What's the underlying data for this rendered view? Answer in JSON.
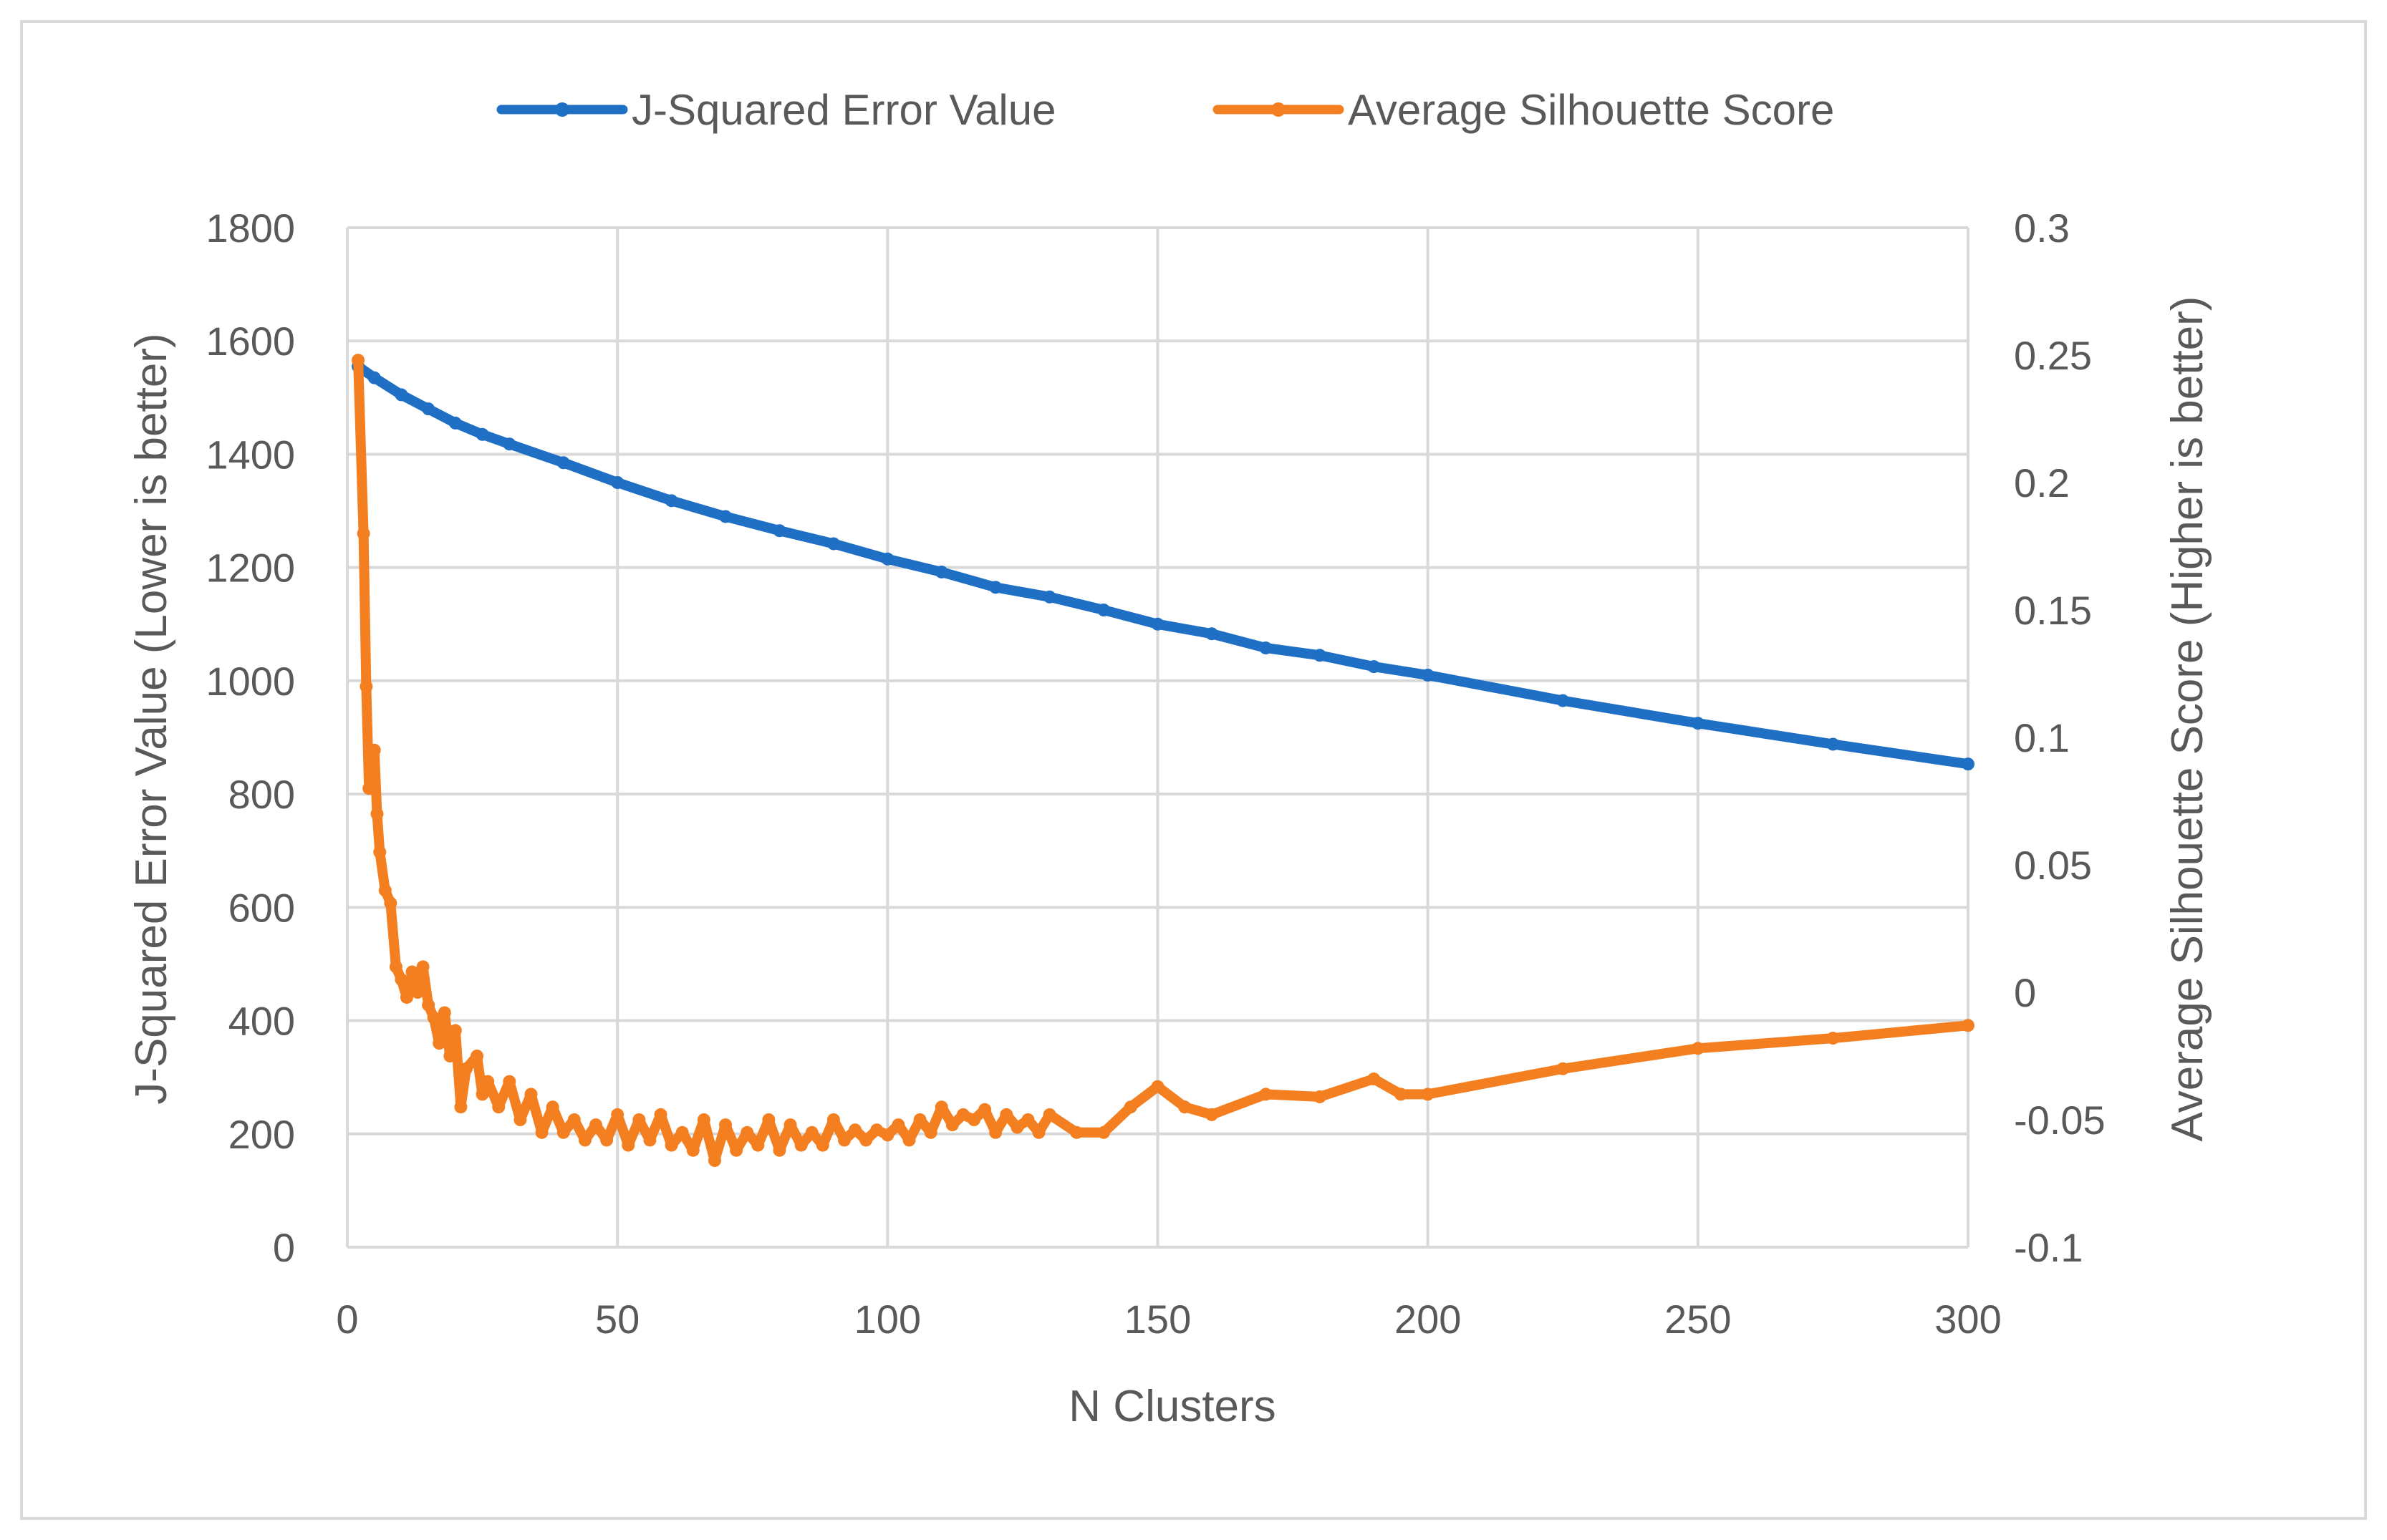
{
  "chart_data": {
    "type": "line",
    "title": "",
    "xlabel": "N Clusters",
    "ylabel": "J-Squared Error Value (Lower is better)",
    "y2label": "Average Silhouette Score (Higher is better)",
    "xlim": [
      0,
      300
    ],
    "ylim": [
      0,
      1800
    ],
    "y2lim": [
      -0.1,
      0.3
    ],
    "x_ticks": [
      "0",
      "50",
      "100",
      "150",
      "200",
      "250",
      "300"
    ],
    "y_ticks": [
      "0",
      "200",
      "400",
      "600",
      "800",
      "1000",
      "1200",
      "1400",
      "1600",
      "1800"
    ],
    "y2_ticks": [
      "-0.1",
      "-0.05",
      "0",
      "0.05",
      "0.1",
      "0.15",
      "0.2",
      "0.25",
      "0.3"
    ],
    "grid": true,
    "legend_position": "top",
    "series": [
      {
        "name": "J-Squared Error Value",
        "axis": "left",
        "color": "#1f6fc5",
        "x": [
          2,
          5,
          10,
          15,
          20,
          25,
          30,
          40,
          50,
          60,
          70,
          80,
          90,
          100,
          110,
          120,
          130,
          140,
          150,
          160,
          170,
          180,
          190,
          200,
          225,
          250,
          275,
          300
        ],
        "values": [
          1555,
          1535,
          1505,
          1480,
          1455,
          1435,
          1418,
          1385,
          1350,
          1318,
          1290,
          1265,
          1242,
          1215,
          1192,
          1165,
          1148,
          1125,
          1100,
          1083,
          1058,
          1045,
          1025,
          1010,
          965,
          925,
          888,
          853
        ]
      },
      {
        "name": "Average Silhouette Score",
        "axis": "right",
        "color": "#f47f20",
        "x": [
          2,
          3,
          3.5,
          4,
          5,
          5.5,
          6,
          7,
          8,
          9,
          10,
          11,
          12,
          13,
          14,
          15,
          16,
          17,
          18,
          19,
          20,
          21,
          22,
          24,
          25,
          26,
          28,
          30,
          32,
          34,
          36,
          38,
          40,
          42,
          44,
          46,
          48,
          50,
          52,
          54,
          56,
          58,
          60,
          62,
          64,
          66,
          68,
          70,
          72,
          74,
          76,
          78,
          80,
          82,
          84,
          86,
          88,
          90,
          92,
          94,
          96,
          98,
          100,
          102,
          104,
          106,
          108,
          110,
          112,
          114,
          116,
          118,
          120,
          122,
          124,
          126,
          128,
          130,
          135,
          140,
          145,
          150,
          155,
          160,
          170,
          180,
          190,
          195,
          200,
          225,
          250,
          275,
          300
        ],
        "values": [
          0.248,
          0.18,
          0.12,
          0.08,
          0.095,
          0.07,
          0.055,
          0.04,
          0.035,
          0.01,
          0.005,
          -0.002,
          0.008,
          0.0,
          0.01,
          -0.005,
          -0.01,
          -0.02,
          -0.008,
          -0.025,
          -0.015,
          -0.045,
          -0.03,
          -0.025,
          -0.04,
          -0.035,
          -0.045,
          -0.035,
          -0.05,
          -0.04,
          -0.055,
          -0.045,
          -0.055,
          -0.05,
          -0.058,
          -0.052,
          -0.058,
          -0.048,
          -0.06,
          -0.05,
          -0.058,
          -0.048,
          -0.06,
          -0.055,
          -0.062,
          -0.05,
          -0.066,
          -0.052,
          -0.062,
          -0.055,
          -0.06,
          -0.05,
          -0.062,
          -0.052,
          -0.06,
          -0.055,
          -0.06,
          -0.05,
          -0.058,
          -0.054,
          -0.058,
          -0.054,
          -0.056,
          -0.052,
          -0.058,
          -0.05,
          -0.055,
          -0.045,
          -0.052,
          -0.048,
          -0.05,
          -0.046,
          -0.055,
          -0.048,
          -0.053,
          -0.05,
          -0.055,
          -0.048,
          -0.055,
          -0.055,
          -0.045,
          -0.037,
          -0.045,
          -0.048,
          -0.04,
          -0.041,
          -0.034,
          -0.04,
          -0.04,
          -0.03,
          -0.022,
          -0.018,
          -0.013
        ]
      }
    ]
  }
}
